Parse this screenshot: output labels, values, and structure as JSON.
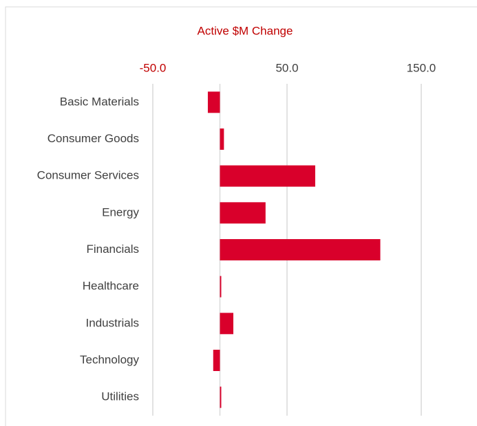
{
  "chart_data": {
    "type": "barh",
    "title": "Active $M Change",
    "categories": [
      "Basic Materials",
      "Consumer Goods",
      "Consumer Services",
      "Energy",
      "Financials",
      "Healthcare",
      "Industrials",
      "Technology",
      "Utilities"
    ],
    "values": [
      -9,
      3,
      71,
      34,
      119.5,
      1,
      10,
      -5,
      1
    ],
    "color": "#d9002b",
    "xlim": [
      -50,
      150
    ],
    "xticks": [
      {
        "value": -50,
        "label": "-50.0"
      },
      {
        "value": 50,
        "label": "50.0"
      },
      {
        "value": 150,
        "label": "150.0"
      }
    ],
    "negative_tick_color": "#c00000",
    "grid": true
  }
}
